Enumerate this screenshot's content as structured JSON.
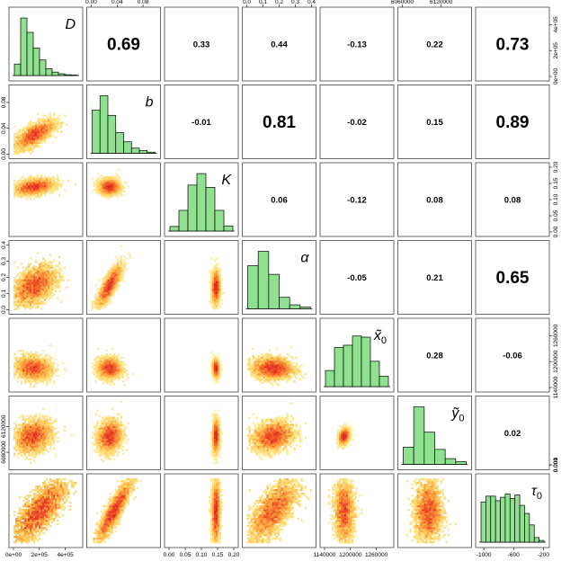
{
  "chart_data": {
    "type": "pairs",
    "variables": [
      {
        "id": "D",
        "name": "D",
        "sub": ""
      },
      {
        "id": "b",
        "name": "b",
        "sub": ""
      },
      {
        "id": "K",
        "name": "K",
        "sub": ""
      },
      {
        "id": "alpha",
        "name": "α",
        "sub": ""
      },
      {
        "id": "x0",
        "name": "x̃",
        "sub": "0"
      },
      {
        "id": "y0",
        "name": "ỹ",
        "sub": "0"
      },
      {
        "id": "tau0",
        "name": "τ",
        "sub": "0"
      }
    ],
    "ranges": [
      [
        0,
        500000
      ],
      [
        0,
        0.1
      ],
      [
        0,
        0.2
      ],
      [
        0,
        0.4
      ],
      [
        1140000,
        1290000
      ],
      [
        6060000,
        6160000
      ],
      [
        -1050,
        -180
      ]
    ],
    "axes": {
      "top": [
        {
          "col": 1,
          "ticks": [
            {
              "v": 0.0,
              "label": "0.00"
            },
            {
              "v": 0.04,
              "label": "0.04"
            },
            {
              "v": 0.08,
              "label": "0.08"
            }
          ]
        },
        {
          "col": 3,
          "ticks": [
            {
              "v": 0.0,
              "label": "0.0"
            },
            {
              "v": 0.1,
              "label": "0.1"
            },
            {
              "v": 0.2,
              "label": "0.2"
            },
            {
              "v": 0.3,
              "label": "0.3"
            },
            {
              "v": 0.4,
              "label": "0.4"
            }
          ]
        },
        {
          "col": 5,
          "ticks": [
            {
              "v": 6060000,
              "label": "6060000"
            },
            {
              "v": 6120000,
              "label": "6120000"
            }
          ]
        }
      ],
      "bottom": [
        {
          "col": 0,
          "ticks": [
            {
              "v": 0,
              "label": "0e+00"
            },
            {
              "v": 200000,
              "label": "2e+05"
            },
            {
              "v": 400000,
              "label": "4e+05"
            }
          ]
        },
        {
          "col": 2,
          "ticks": [
            {
              "v": 0.0,
              "label": "0.00"
            },
            {
              "v": 0.05,
              "label": "0.05"
            },
            {
              "v": 0.1,
              "label": "0.10"
            },
            {
              "v": 0.15,
              "label": "0.15"
            },
            {
              "v": 0.2,
              "label": "0.20"
            }
          ]
        },
        {
          "col": 4,
          "ticks": [
            {
              "v": 1140000,
              "label": "1140000"
            },
            {
              "v": 1200000,
              "label": "1200000"
            },
            {
              "v": 1260000,
              "label": "1260000"
            }
          ]
        },
        {
          "col": 6,
          "ticks": [
            {
              "v": -1000,
              "label": "-1000"
            },
            {
              "v": -600,
              "label": "-600"
            },
            {
              "v": -200,
              "label": "-200"
            }
          ]
        }
      ],
      "left": [
        {
          "row": 1,
          "ticks": [
            {
              "v": 0.0,
              "label": "0.00"
            },
            {
              "v": 0.04,
              "label": "0.04"
            },
            {
              "v": 0.08,
              "label": "0.08"
            }
          ]
        },
        {
          "row": 3,
          "ticks": [
            {
              "v": 0.0,
              "label": "0.0"
            },
            {
              "v": 0.1,
              "label": "0.1"
            },
            {
              "v": 0.2,
              "label": "0.2"
            },
            {
              "v": 0.3,
              "label": "0.3"
            },
            {
              "v": 0.4,
              "label": "0.4"
            }
          ]
        },
        {
          "row": 5,
          "ticks": [
            {
              "v": 6080000,
              "label": "6080000"
            },
            {
              "v": 6120000,
              "label": "6120000"
            }
          ]
        }
      ],
      "right": [
        {
          "row": 0,
          "ticks": [
            {
              "v": 0,
              "label": "0e+00"
            },
            {
              "v": 200000,
              "label": "2e+05"
            },
            {
              "v": 400000,
              "label": "4e+05"
            }
          ]
        },
        {
          "row": 2,
          "ticks": [
            {
              "v": 0.0,
              "label": "0.00"
            },
            {
              "v": 0.05,
              "label": "0.05"
            },
            {
              "v": 0.1,
              "label": "0.10"
            },
            {
              "v": 0.15,
              "label": "0.15"
            },
            {
              "v": 0.2,
              "label": "0.20"
            }
          ]
        },
        {
          "row": 4,
          "ticks": [
            {
              "v": 1140000,
              "label": "1140000"
            },
            {
              "v": 1200000,
              "label": "1200000"
            },
            {
              "v": 1260000,
              "label": "1260000"
            }
          ]
        },
        {
          "row": 6,
          "ticks": [
            {
              "v": 0.0,
              "label": "0.000"
            },
            {
              "v": 0.001,
              "label": "0.001"
            },
            {
              "v": 0.002,
              "label": "0.002"
            }
          ]
        }
      ]
    },
    "histograms": [
      [
        0.2,
        1.0,
        0.75,
        0.48,
        0.27,
        0.12,
        0.06,
        0.03,
        0.015,
        0.008
      ],
      [
        0.75,
        1.0,
        0.66,
        0.36,
        0.2,
        0.09,
        0.05,
        0.02
      ],
      [
        0.08,
        0.36,
        0.8,
        1.0,
        0.76,
        0.36,
        0.09
      ],
      [
        0.75,
        1.0,
        0.6,
        0.2,
        0.07,
        0.03
      ],
      [
        0.28,
        0.68,
        0.72,
        0.88,
        0.86,
        0.44,
        0.18
      ],
      [
        0.3,
        1.0,
        0.56,
        0.26,
        0.1,
        0.05
      ],
      [
        0.7,
        0.8,
        0.8,
        0.72,
        0.78,
        0.84,
        0.76,
        0.82,
        0.64,
        0.5,
        0.3,
        0.08,
        0.03
      ]
    ],
    "correlations": [
      {
        "row": 0,
        "col": 1,
        "value": "0.69"
      },
      {
        "row": 0,
        "col": 2,
        "value": "0.33"
      },
      {
        "row": 0,
        "col": 3,
        "value": "0.44"
      },
      {
        "row": 0,
        "col": 4,
        "value": "-0.13"
      },
      {
        "row": 0,
        "col": 5,
        "value": "0.22"
      },
      {
        "row": 0,
        "col": 6,
        "value": "0.73"
      },
      {
        "row": 1,
        "col": 2,
        "value": "-0.01"
      },
      {
        "row": 1,
        "col": 3,
        "value": "0.81"
      },
      {
        "row": 1,
        "col": 4,
        "value": "-0.02"
      },
      {
        "row": 1,
        "col": 5,
        "value": "0.15"
      },
      {
        "row": 1,
        "col": 6,
        "value": "0.89"
      },
      {
        "row": 2,
        "col": 3,
        "value": "0.06"
      },
      {
        "row": 2,
        "col": 4,
        "value": "-0.12"
      },
      {
        "row": 2,
        "col": 5,
        "value": "0.08"
      },
      {
        "row": 2,
        "col": 6,
        "value": "0.08"
      },
      {
        "row": 3,
        "col": 4,
        "value": "-0.05"
      },
      {
        "row": 3,
        "col": 5,
        "value": "0.21"
      },
      {
        "row": 3,
        "col": 6,
        "value": "0.65"
      },
      {
        "row": 4,
        "col": 5,
        "value": "0.28"
      },
      {
        "row": 4,
        "col": 6,
        "value": "-0.06"
      },
      {
        "row": 5,
        "col": 6,
        "value": "0.02"
      }
    ],
    "densities": [
      {
        "row": 1,
        "col": 0,
        "mx": 160000,
        "my": 0.03,
        "sx": 75000,
        "sy": 0.011,
        "rho": 0.69
      },
      {
        "row": 2,
        "col": 0,
        "mx": 160000,
        "my": 0.14,
        "sx": 75000,
        "sy": 0.012,
        "rho": 0.33
      },
      {
        "row": 2,
        "col": 1,
        "mx": 0.028,
        "my": 0.14,
        "sx": 0.008,
        "sy": 0.012,
        "rho": -0.01
      },
      {
        "row": 3,
        "col": 0,
        "mx": 160000,
        "my": 0.15,
        "sx": 80000,
        "sy": 0.06,
        "rho": 0.44
      },
      {
        "row": 3,
        "col": 1,
        "mx": 0.028,
        "my": 0.15,
        "sx": 0.009,
        "sy": 0.06,
        "rho": 0.81
      },
      {
        "row": 3,
        "col": 2,
        "mx": 0.145,
        "my": 0.14,
        "sx": 0.006,
        "sy": 0.05,
        "rho": 0.06
      },
      {
        "row": 4,
        "col": 0,
        "mx": 150000,
        "my": 1185000,
        "sx": 70000,
        "sy": 13000,
        "rho": -0.13
      },
      {
        "row": 4,
        "col": 1,
        "mx": 0.028,
        "my": 1185000,
        "sx": 0.009,
        "sy": 12000,
        "rho": -0.02
      },
      {
        "row": 4,
        "col": 2,
        "mx": 0.145,
        "my": 1185000,
        "sx": 0.005,
        "sy": 10000,
        "rho": -0.12
      },
      {
        "row": 4,
        "col": 3,
        "mx": 0.16,
        "my": 1185000,
        "sx": 0.06,
        "sy": 12000,
        "rho": -0.05
      },
      {
        "row": 5,
        "col": 0,
        "mx": 150000,
        "my": 6105000,
        "sx": 70000,
        "sy": 12000,
        "rho": 0.22
      },
      {
        "row": 5,
        "col": 1,
        "mx": 0.028,
        "my": 6105000,
        "sx": 0.009,
        "sy": 12000,
        "rho": 0.15
      },
      {
        "row": 5,
        "col": 2,
        "mx": 0.145,
        "my": 6105000,
        "sx": 0.005,
        "sy": 12000,
        "rho": 0.08
      },
      {
        "row": 5,
        "col": 3,
        "mx": 0.16,
        "my": 6105000,
        "sx": 0.06,
        "sy": 11000,
        "rho": 0.21
      },
      {
        "row": 5,
        "col": 4,
        "mx": 1185000,
        "my": 6105000,
        "sx": 6000,
        "sy": 6000,
        "rho": 0.28
      },
      {
        "row": 6,
        "col": 0,
        "mx": 200000,
        "my": -620,
        "sx": 100000,
        "sy": 200,
        "rho": 0.73
      },
      {
        "row": 6,
        "col": 1,
        "mx": 0.035,
        "my": -620,
        "sx": 0.013,
        "sy": 200,
        "rho": 0.89
      },
      {
        "row": 6,
        "col": 2,
        "mx": 0.145,
        "my": -620,
        "sx": 0.006,
        "sy": 200,
        "rho": 0.08
      },
      {
        "row": 6,
        "col": 3,
        "mx": 0.16,
        "my": -620,
        "sx": 0.07,
        "sy": 200,
        "rho": 0.65
      },
      {
        "row": 6,
        "col": 4,
        "mx": 1185000,
        "my": -620,
        "sx": 11000,
        "sy": 200,
        "rho": -0.06
      },
      {
        "row": 6,
        "col": 5,
        "mx": 6100000,
        "my": -620,
        "sx": 10000,
        "sy": 200,
        "rho": 0.02
      }
    ],
    "colors": {
      "hist_fill": "#8fe08f",
      "hist_stroke": "#000000",
      "panel_border": "#444444",
      "density_low": "#fff0a0",
      "density_mid": "#ffa040",
      "density_high": "#e02828"
    }
  }
}
